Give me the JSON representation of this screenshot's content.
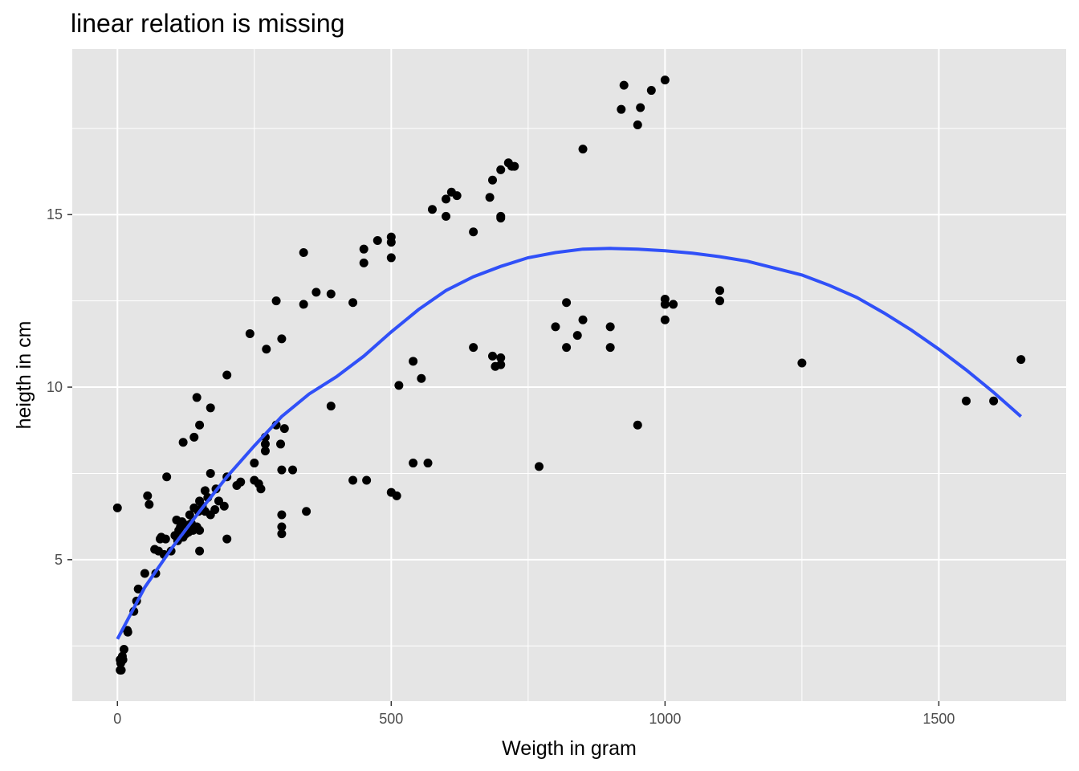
{
  "chart_data": {
    "type": "scatter",
    "title": "linear relation is missing",
    "xlabel": "Weigth in gram",
    "ylabel": "heigth in cm",
    "xlim": [
      -82.5,
      1732.5
    ],
    "ylim": [
      0.9,
      19.8
    ],
    "x_ticks": [
      0,
      500,
      1000,
      1500
    ],
    "y_ticks": [
      5,
      10,
      15
    ],
    "x_tick_labels": [
      "0",
      "500",
      "1000",
      "1500"
    ],
    "y_tick_labels": [
      "5",
      "10",
      "15"
    ],
    "grid": true,
    "panel_background": "#e5e5e5",
    "grid_color": "#ffffff",
    "point_color": "#000000",
    "smooth_color": "#3050f8",
    "points": [
      [
        0,
        6.5
      ],
      [
        5,
        2.1
      ],
      [
        5,
        1.8
      ],
      [
        6,
        2.0
      ],
      [
        7,
        1.8
      ],
      [
        8,
        2.15
      ],
      [
        9,
        2.2
      ],
      [
        10,
        2.1
      ],
      [
        12,
        2.4
      ],
      [
        18,
        2.95
      ],
      [
        19,
        2.9
      ],
      [
        30,
        3.5
      ],
      [
        35,
        3.8
      ],
      [
        38,
        4.15
      ],
      [
        50,
        4.6
      ],
      [
        55,
        6.85
      ],
      [
        58,
        6.6
      ],
      [
        68,
        5.3
      ],
      [
        70,
        4.6
      ],
      [
        75,
        5.25
      ],
      [
        78,
        5.6
      ],
      [
        80,
        5.65
      ],
      [
        85,
        5.15
      ],
      [
        88,
        5.6
      ],
      [
        90,
        7.4
      ],
      [
        98,
        5.25
      ],
      [
        105,
        5.7
      ],
      [
        108,
        6.15
      ],
      [
        110,
        5.55
      ],
      [
        112,
        5.85
      ],
      [
        115,
        5.95
      ],
      [
        118,
        6.1
      ],
      [
        120,
        8.4
      ],
      [
        120,
        5.65
      ],
      [
        125,
        5.75
      ],
      [
        128,
        6.0
      ],
      [
        130,
        5.8
      ],
      [
        132,
        6.3
      ],
      [
        135,
        6.05
      ],
      [
        138,
        5.85
      ],
      [
        140,
        8.55
      ],
      [
        140,
        6.5
      ],
      [
        145,
        9.7
      ],
      [
        145,
        5.95
      ],
      [
        148,
        6.4
      ],
      [
        150,
        5.85
      ],
      [
        150,
        6.7
      ],
      [
        150,
        5.25
      ],
      [
        150,
        8.9
      ],
      [
        155,
        6.55
      ],
      [
        160,
        6.4
      ],
      [
        160,
        7.0
      ],
      [
        165,
        6.8
      ],
      [
        170,
        7.5
      ],
      [
        170,
        9.4
      ],
      [
        170,
        6.3
      ],
      [
        178,
        6.45
      ],
      [
        180,
        7.05
      ],
      [
        185,
        6.7
      ],
      [
        195,
        6.55
      ],
      [
        200,
        10.35
      ],
      [
        200,
        7.4
      ],
      [
        200,
        5.6
      ],
      [
        218,
        7.15
      ],
      [
        225,
        7.25
      ],
      [
        242,
        11.55
      ],
      [
        250,
        7.8
      ],
      [
        250,
        7.3
      ],
      [
        258,
        7.2
      ],
      [
        262,
        7.05
      ],
      [
        270,
        8.55
      ],
      [
        270,
        8.35
      ],
      [
        270,
        8.15
      ],
      [
        272,
        11.1
      ],
      [
        290,
        12.5
      ],
      [
        290,
        8.9
      ],
      [
        298,
        8.35
      ],
      [
        300,
        11.4
      ],
      [
        300,
        7.6
      ],
      [
        300,
        6.3
      ],
      [
        300,
        5.95
      ],
      [
        300,
        5.75
      ],
      [
        305,
        8.8
      ],
      [
        320,
        7.6
      ],
      [
        340,
        13.9
      ],
      [
        340,
        12.4
      ],
      [
        345,
        6.4
      ],
      [
        363,
        12.75
      ],
      [
        390,
        12.7
      ],
      [
        390,
        9.45
      ],
      [
        430,
        12.45
      ],
      [
        430,
        7.3
      ],
      [
        450,
        14.0
      ],
      [
        450,
        13.6
      ],
      [
        455,
        7.3
      ],
      [
        475,
        14.25
      ],
      [
        500,
        14.35
      ],
      [
        500,
        14.2
      ],
      [
        500,
        13.75
      ],
      [
        500,
        6.95
      ],
      [
        510,
        6.85
      ],
      [
        514,
        10.05
      ],
      [
        540,
        10.75
      ],
      [
        540,
        7.8
      ],
      [
        555,
        10.25
      ],
      [
        567,
        7.8
      ],
      [
        575,
        15.15
      ],
      [
        600,
        15.45
      ],
      [
        600,
        14.95
      ],
      [
        610,
        15.65
      ],
      [
        620,
        15.55
      ],
      [
        650,
        14.5
      ],
      [
        650,
        11.15
      ],
      [
        680,
        15.5
      ],
      [
        685,
        16.0
      ],
      [
        685,
        10.9
      ],
      [
        690,
        10.6
      ],
      [
        700,
        16.3
      ],
      [
        700,
        14.95
      ],
      [
        700,
        14.9
      ],
      [
        700,
        10.85
      ],
      [
        700,
        10.65
      ],
      [
        714,
        16.5
      ],
      [
        720,
        16.4
      ],
      [
        725,
        16.4
      ],
      [
        770,
        7.7
      ],
      [
        800,
        11.75
      ],
      [
        820,
        12.45
      ],
      [
        820,
        11.15
      ],
      [
        840,
        11.5
      ],
      [
        850,
        16.9
      ],
      [
        850,
        11.95
      ],
      [
        900,
        11.75
      ],
      [
        900,
        11.15
      ],
      [
        920,
        18.05
      ],
      [
        925,
        18.75
      ],
      [
        950,
        17.6
      ],
      [
        950,
        8.9
      ],
      [
        955,
        18.1
      ],
      [
        975,
        18.6
      ],
      [
        1000,
        18.9
      ],
      [
        1000,
        12.55
      ],
      [
        1000,
        12.4
      ],
      [
        1000,
        11.95
      ],
      [
        1015,
        12.4
      ],
      [
        1100,
        12.8
      ],
      [
        1100,
        12.5
      ],
      [
        1250,
        10.7
      ],
      [
        1550,
        9.6
      ],
      [
        1600,
        9.6
      ],
      [
        1650,
        10.8
      ]
    ],
    "smooth": {
      "x": [
        0,
        50,
        100,
        150,
        200,
        250,
        300,
        350,
        400,
        450,
        500,
        550,
        600,
        650,
        700,
        750,
        800,
        850,
        900,
        950,
        1000,
        1050,
        1100,
        1150,
        1200,
        1250,
        1300,
        1350,
        1400,
        1450,
        1500,
        1550,
        1600,
        1650
      ],
      "y": [
        2.7,
        4.2,
        5.35,
        6.4,
        7.4,
        8.3,
        9.15,
        9.8,
        10.3,
        10.9,
        11.6,
        12.25,
        12.8,
        13.2,
        13.5,
        13.75,
        13.9,
        14.0,
        14.02,
        14.0,
        13.95,
        13.88,
        13.78,
        13.65,
        13.45,
        13.25,
        12.95,
        12.6,
        12.15,
        11.65,
        11.1,
        10.5,
        9.85,
        9.15
      ]
    }
  }
}
